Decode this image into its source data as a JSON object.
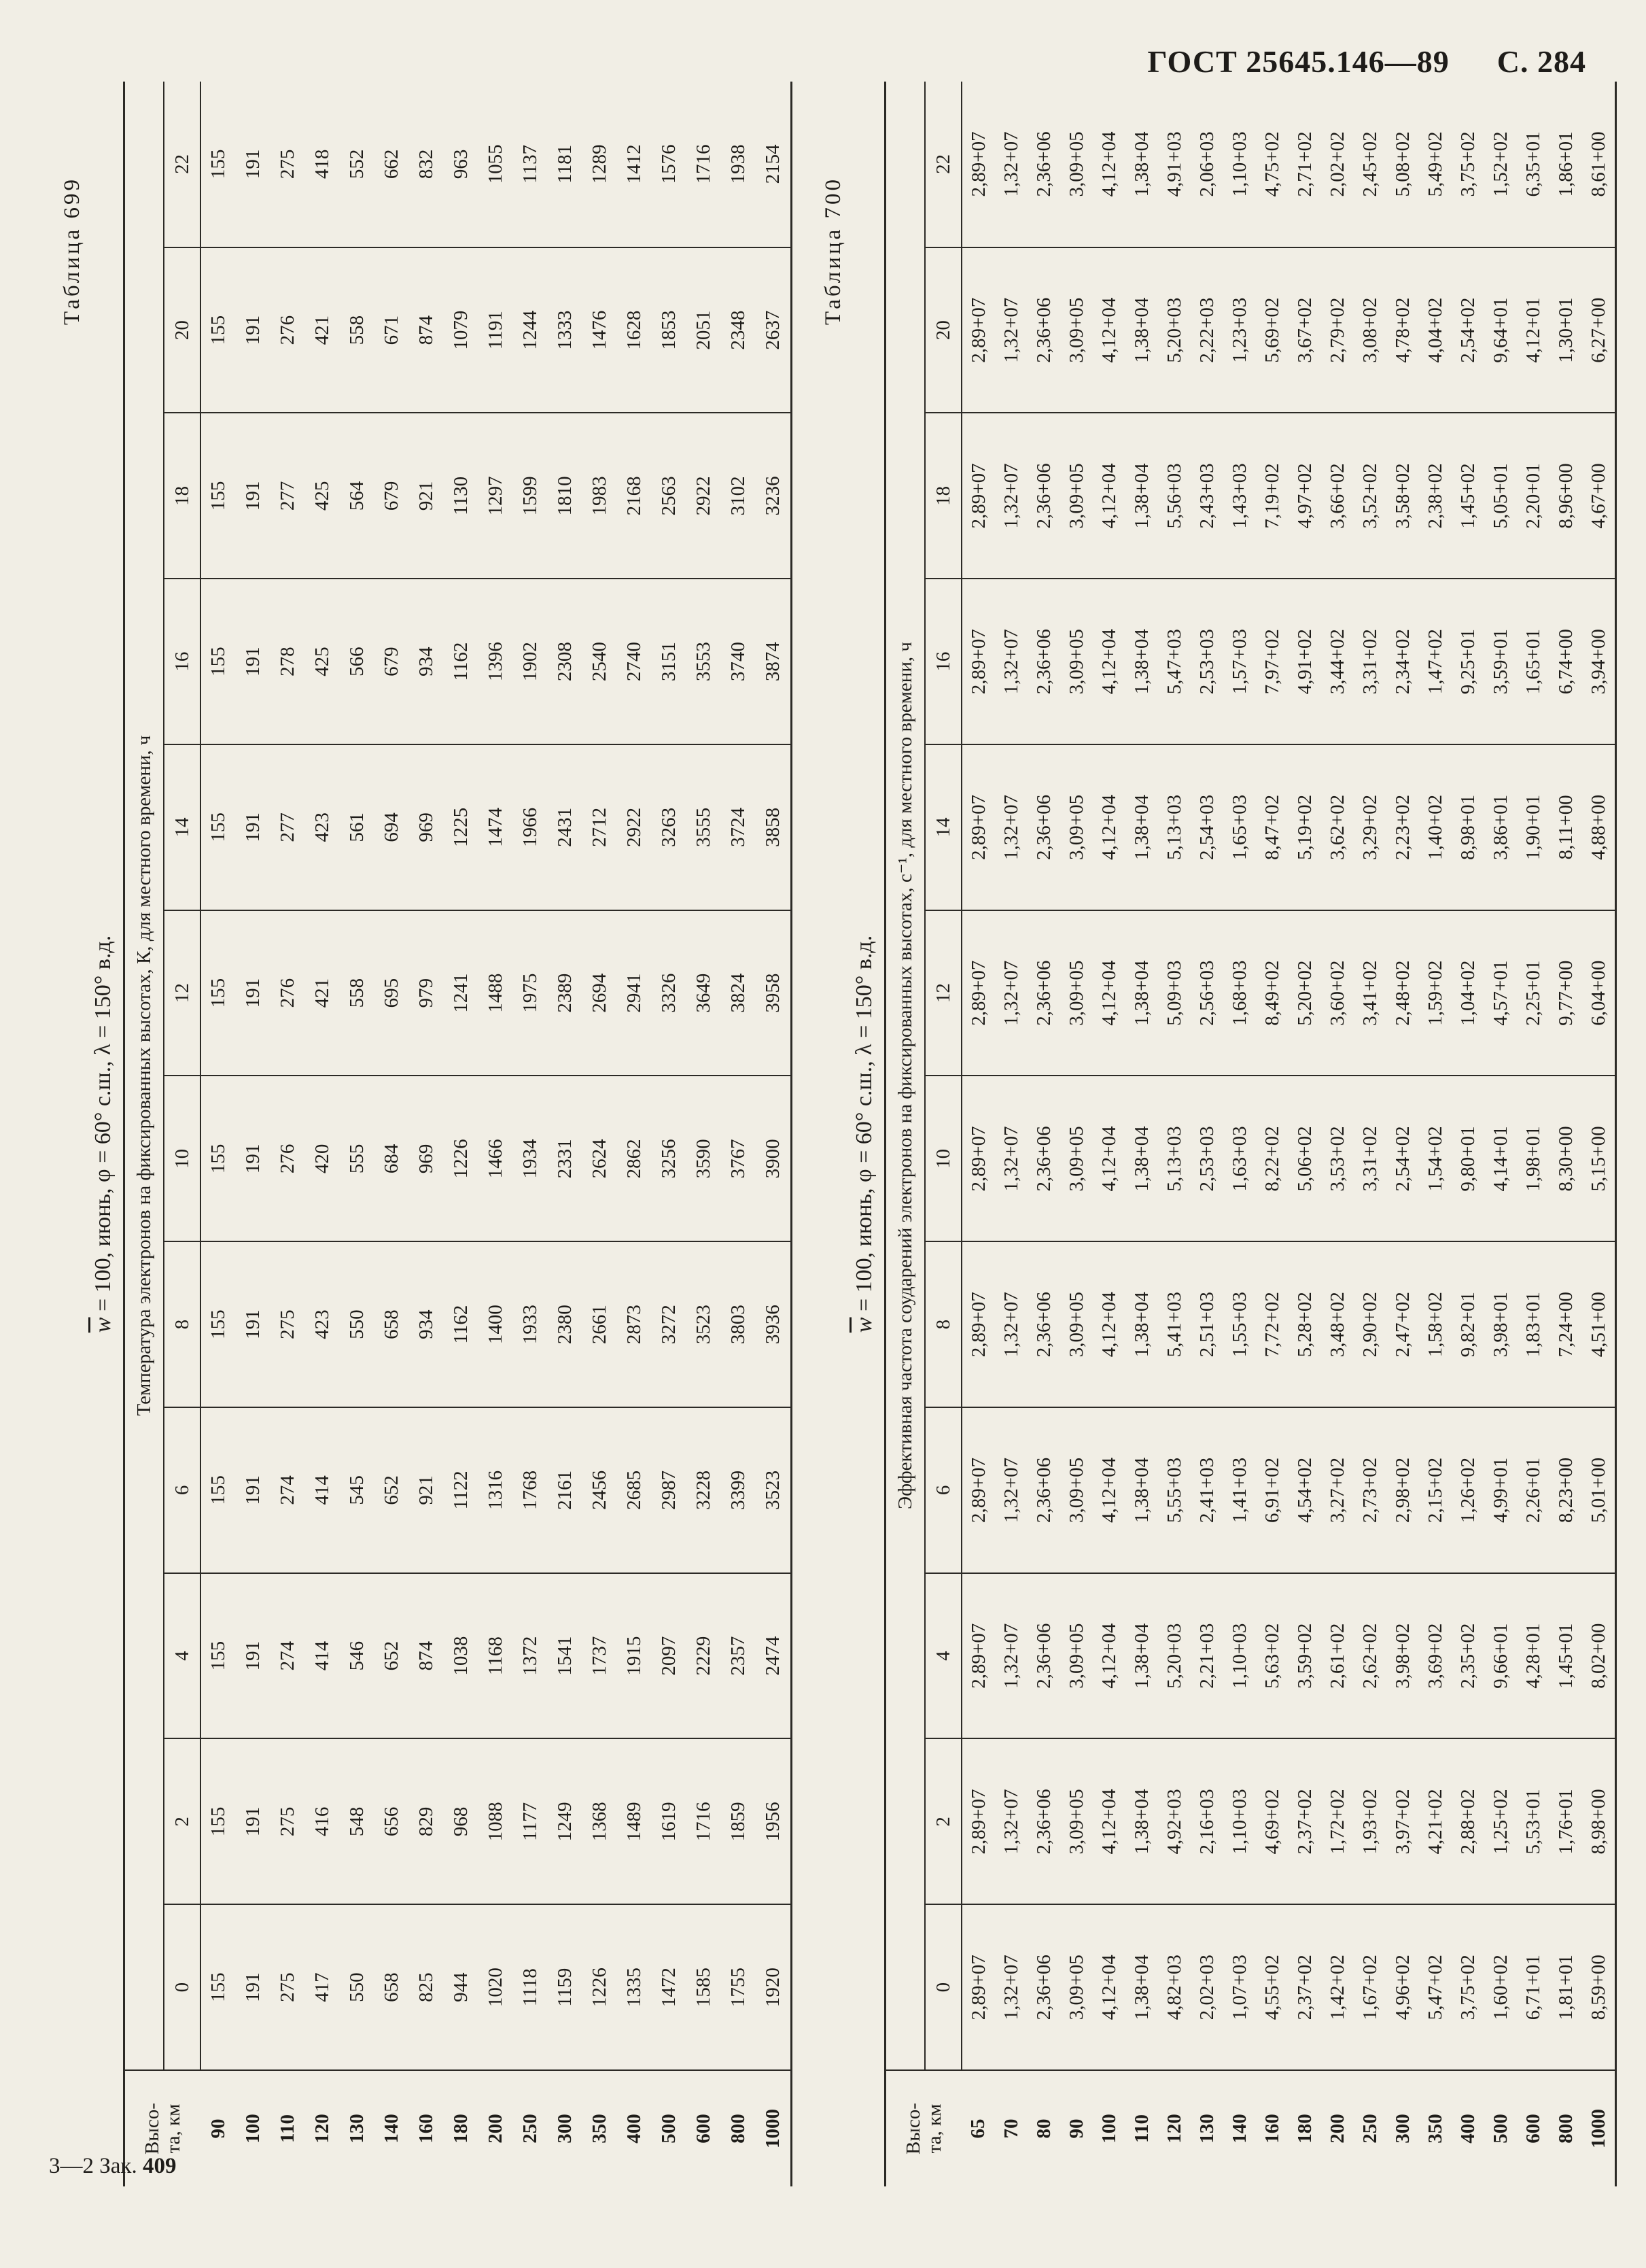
{
  "page_header": {
    "gost": "ГОСТ 25645.146—89",
    "page": "С. 284"
  },
  "footer": {
    "prefix": "3—2 Зак.",
    "number": "409"
  },
  "table699": {
    "label": "Таблица 699",
    "title_var": "w",
    "title_rest": " = 100, июнь, φ = 60° с.ш., λ = 150° в.д.",
    "stub_header": "Высо-\nта, км",
    "span_header": "Температура электронов на фиксированных высотах, К, для местного времени, ч",
    "hours": [
      "0",
      "2",
      "4",
      "6",
      "8",
      "10",
      "12",
      "14",
      "16",
      "18",
      "20",
      "22"
    ],
    "heights": [
      "90",
      "100",
      "110",
      "120",
      "130",
      "140",
      "160",
      "180",
      "200",
      "250",
      "300",
      "350",
      "400",
      "500",
      "600",
      "800",
      "1000"
    ],
    "rows": [
      [
        "155",
        "155",
        "155",
        "155",
        "155",
        "155",
        "155",
        "155",
        "155",
        "155",
        "155",
        "155"
      ],
      [
        "191",
        "191",
        "191",
        "191",
        "191",
        "191",
        "191",
        "191",
        "191",
        "191",
        "191",
        "191"
      ],
      [
        "275",
        "275",
        "274",
        "274",
        "275",
        "276",
        "276",
        "277",
        "278",
        "277",
        "276",
        "275"
      ],
      [
        "417",
        "416",
        "414",
        "414",
        "423",
        "420",
        "421",
        "423",
        "425",
        "425",
        "421",
        "418"
      ],
      [
        "550",
        "548",
        "546",
        "545",
        "550",
        "555",
        "558",
        "561",
        "566",
        "564",
        "558",
        "552"
      ],
      [
        "658",
        "656",
        "652",
        "652",
        "658",
        "684",
        "695",
        "694",
        "679",
        "679",
        "671",
        "662"
      ],
      [
        "825",
        "829",
        "874",
        "921",
        "934",
        "969",
        "979",
        "969",
        "934",
        "921",
        "874",
        "832"
      ],
      [
        "944",
        "968",
        "1038",
        "1122",
        "1162",
        "1226",
        "1241",
        "1225",
        "1162",
        "1130",
        "1079",
        "963"
      ],
      [
        "1020",
        "1088",
        "1168",
        "1316",
        "1400",
        "1466",
        "1488",
        "1474",
        "1396",
        "1297",
        "1191",
        "1055"
      ],
      [
        "1118",
        "1177",
        "1372",
        "1768",
        "1933",
        "1934",
        "1975",
        "1966",
        "1902",
        "1599",
        "1244",
        "1137"
      ],
      [
        "1159",
        "1249",
        "1541",
        "2161",
        "2380",
        "2331",
        "2389",
        "2431",
        "2308",
        "1810",
        "1333",
        "1181"
      ],
      [
        "1226",
        "1368",
        "1737",
        "2456",
        "2661",
        "2624",
        "2694",
        "2712",
        "2540",
        "1983",
        "1476",
        "1289"
      ],
      [
        "1335",
        "1489",
        "1915",
        "2685",
        "2873",
        "2862",
        "2941",
        "2922",
        "2740",
        "2168",
        "1628",
        "1412"
      ],
      [
        "1472",
        "1619",
        "2097",
        "2987",
        "3272",
        "3256",
        "3326",
        "3263",
        "3151",
        "2563",
        "1853",
        "1576"
      ],
      [
        "1585",
        "1716",
        "2229",
        "3228",
        "3523",
        "3590",
        "3649",
        "3555",
        "3553",
        "2922",
        "2051",
        "1716"
      ],
      [
        "1755",
        "1859",
        "2357",
        "3399",
        "3803",
        "3767",
        "3824",
        "3724",
        "3740",
        "3102",
        "2348",
        "1938"
      ],
      [
        "1920",
        "1956",
        "2474",
        "3523",
        "3936",
        "3900",
        "3958",
        "3858",
        "3874",
        "3236",
        "2637",
        "2154"
      ]
    ]
  },
  "table700": {
    "label": "Таблица 700",
    "title_var": "w",
    "title_rest": " = 100, июнь, φ = 60° с.ш., λ = 150° в.д.",
    "stub_header": "Высо-\nта, км",
    "span_header": "Эффективная частота соударений электронов на фиксированных высотах, с⁻¹, для местного времени, ч",
    "hours": [
      "0",
      "2",
      "4",
      "6",
      "8",
      "10",
      "12",
      "14",
      "16",
      "18",
      "20",
      "22"
    ],
    "heights": [
      "65",
      "70",
      "80",
      "90",
      "100",
      "110",
      "120",
      "130",
      "140",
      "160",
      "180",
      "200",
      "250",
      "300",
      "350",
      "400",
      "500",
      "600",
      "800",
      "1000"
    ],
    "rows": [
      [
        "2,89+07",
        "2,89+07",
        "2,89+07",
        "2,89+07",
        "2,89+07",
        "2,89+07",
        "2,89+07",
        "2,89+07",
        "2,89+07",
        "2,89+07",
        "2,89+07",
        "2,89+07"
      ],
      [
        "1,32+07",
        "1,32+07",
        "1,32+07",
        "1,32+07",
        "1,32+07",
        "1,32+07",
        "1,32+07",
        "1,32+07",
        "1,32+07",
        "1,32+07",
        "1,32+07",
        "1,32+07"
      ],
      [
        "2,36+06",
        "2,36+06",
        "2,36+06",
        "2,36+06",
        "2,36+06",
        "2,36+06",
        "2,36+06",
        "2,36+06",
        "2,36+06",
        "2,36+06",
        "2,36+06",
        "2,36+06"
      ],
      [
        "3,09+05",
        "3,09+05",
        "3,09+05",
        "3,09+05",
        "3,09+05",
        "3,09+05",
        "3,09+05",
        "3,09+05",
        "3,09+05",
        "3,09+05",
        "3,09+05",
        "3,09+05"
      ],
      [
        "4,12+04",
        "4,12+04",
        "4,12+04",
        "4,12+04",
        "4,12+04",
        "4,12+04",
        "4,12+04",
        "4,12+04",
        "4,12+04",
        "4,12+04",
        "4,12+04",
        "4,12+04"
      ],
      [
        "1,38+04",
        "1,38+04",
        "1,38+04",
        "1,38+04",
        "1,38+04",
        "1,38+04",
        "1,38+04",
        "1,38+04",
        "1,38+04",
        "1,38+04",
        "1,38+04",
        "1,38+04"
      ],
      [
        "4,82+03",
        "4,92+03",
        "5,20+03",
        "5,55+03",
        "5,41+03",
        "5,13+03",
        "5,09+03",
        "5,13+03",
        "5,47+03",
        "5,56+03",
        "5,20+03",
        "4,91+03"
      ],
      [
        "2,02+03",
        "2,16+03",
        "2,21+03",
        "2,41+03",
        "2,51+03",
        "2,53+03",
        "2,56+03",
        "2,54+03",
        "2,53+03",
        "2,43+03",
        "2,22+03",
        "2,06+03"
      ],
      [
        "1,07+03",
        "1,10+03",
        "1,10+03",
        "1,41+03",
        "1,55+03",
        "1,63+03",
        "1,68+03",
        "1,65+03",
        "1,57+03",
        "1,43+03",
        "1,23+03",
        "1,10+03"
      ],
      [
        "4,55+02",
        "4,69+02",
        "5,63+02",
        "6,91+02",
        "7,72+02",
        "8,22+02",
        "8,49+02",
        "8,47+02",
        "7,97+02",
        "7,19+02",
        "5,69+02",
        "4,75+02"
      ],
      [
        "2,37+02",
        "2,37+02",
        "3,59+02",
        "4,54+02",
        "5,28+02",
        "5,06+02",
        "5,20+02",
        "5,19+02",
        "4,91+02",
        "4,97+02",
        "3,67+02",
        "2,71+02"
      ],
      [
        "1,42+02",
        "1,72+02",
        "2,61+02",
        "3,27+02",
        "3,48+02",
        "3,53+02",
        "3,60+02",
        "3,62+02",
        "3,44+02",
        "3,66+02",
        "2,79+02",
        "2,02+02"
      ],
      [
        "1,67+02",
        "1,93+02",
        "2,62+02",
        "2,73+02",
        "2,90+02",
        "3,31+02",
        "3,41+02",
        "3,29+02",
        "3,31+02",
        "3,52+02",
        "3,08+02",
        "2,45+02"
      ],
      [
        "4,96+02",
        "3,97+02",
        "3,98+02",
        "2,98+02",
        "2,47+02",
        "2,54+02",
        "2,48+02",
        "2,23+02",
        "2,34+02",
        "3,58+02",
        "4,78+02",
        "5,08+02"
      ],
      [
        "5,47+02",
        "4,21+02",
        "3,69+02",
        "2,15+02",
        "1,58+02",
        "1,54+02",
        "1,59+02",
        "1,40+02",
        "1,47+02",
        "2,38+02",
        "4,04+02",
        "5,49+02"
      ],
      [
        "3,75+02",
        "2,88+02",
        "2,35+02",
        "1,26+02",
        "9,82+01",
        "9,80+01",
        "1,04+02",
        "8,98+01",
        "9,25+01",
        "1,45+02",
        "2,54+02",
        "3,75+02"
      ],
      [
        "1,60+02",
        "1,25+02",
        "9,66+01",
        "4,99+01",
        "3,98+01",
        "4,14+01",
        "4,57+01",
        "3,86+01",
        "3,59+01",
        "5,05+01",
        "9,64+01",
        "1,52+02"
      ],
      [
        "6,71+01",
        "5,53+01",
        "4,28+01",
        "2,26+01",
        "1,83+01",
        "1,98+01",
        "2,25+01",
        "1,90+01",
        "1,65+01",
        "2,20+01",
        "4,12+01",
        "6,35+01"
      ],
      [
        "1,81+01",
        "1,76+01",
        "1,45+01",
        "8,23+00",
        "7,24+00",
        "8,30+00",
        "9,77+00",
        "8,11+00",
        "6,74+00",
        "8,96+00",
        "1,30+01",
        "1,86+01"
      ],
      [
        "8,59+00",
        "8,98+00",
        "8,02+00",
        "5,01+00",
        "4,51+00",
        "5,15+00",
        "6,04+00",
        "4,88+00",
        "3,94+00",
        "4,67+00",
        "6,27+00",
        "8,61+00"
      ]
    ]
  }
}
